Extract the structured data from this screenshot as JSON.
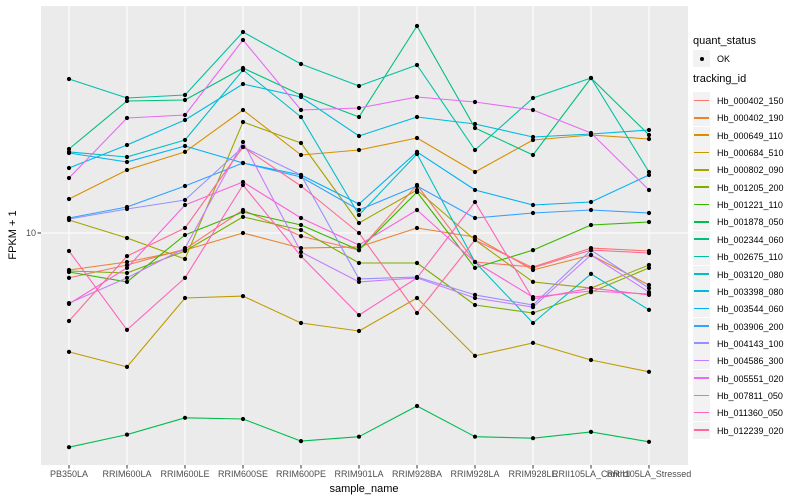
{
  "axes": {
    "y": {
      "title": "FPKM + 1",
      "tick_label": "10"
    },
    "x": {
      "title": "sample_name"
    }
  },
  "legend": {
    "quant": {
      "title": "quant_status",
      "items": [
        {
          "label": "OK",
          "symbol": "black-point"
        }
      ]
    },
    "tracking": {
      "title": "tracking_id"
    }
  },
  "chart_data": {
    "type": "line",
    "title": "",
    "xlabel": "sample_name",
    "ylabel": "FPKM + 1",
    "y_scale": "log10",
    "y_tick_values": [
      10
    ],
    "ylim": [
      1.17,
      81.6
    ],
    "grid": "major-white-on-grey",
    "legend_position": "right",
    "panel_background": "#EBEBEB",
    "gridline_color": "#FFFFFF",
    "point_color": "#000000",
    "categories": [
      "PB350LA",
      "RRIM600LA",
      "RRIM600LE",
      "RRIM600SE",
      "RRIM600PE",
      "RRIM901LA",
      "RRIM928BA",
      "RRIM928LA",
      "RRIM928LE",
      "RRII105LA_Control",
      "RRII105LA_Stressed"
    ],
    "series": [
      {
        "name": "Hb_000402_150",
        "color": "#F8766D",
        "values": [
          6.6,
          7.44,
          8.62,
          12.37,
          9.72,
          8.54,
          15.59,
          7.65,
          7.3,
          8.7,
          8.47
        ]
      },
      {
        "name": "Hb_000402_190",
        "color": "#EA8331",
        "values": [
          7.1,
          7.65,
          8.54,
          10.0,
          8.7,
          8.79,
          10.47,
          9.64,
          7.1,
          8.16,
          6.18
        ]
      },
      {
        "name": "Hb_000649_110",
        "color": "#D89000",
        "values": [
          13.69,
          17.91,
          21.16,
          31.19,
          20.57,
          21.54,
          24.07,
          17.58,
          23.63,
          24.75,
          23.85
        ]
      },
      {
        "name": "Hb_000684_510",
        "color": "#C09B00",
        "values": [
          3.33,
          2.9,
          5.48,
          5.58,
          4.35,
          4.04,
          5.48,
          3.21,
          3.62,
          3.09,
          2.77
        ]
      },
      {
        "name": "Hb_000802_090",
        "color": "#A3A500",
        "values": [
          11.28,
          9.55,
          7.86,
          27.92,
          22.99,
          10.97,
          14.88,
          9.37,
          6.36,
          6.01,
          7.44
        ]
      },
      {
        "name": "Hb_001205_200",
        "color": "#7CAE00",
        "values": [
          7.04,
          6.91,
          8.47,
          11.6,
          10.28,
          7.58,
          7.58,
          5.14,
          4.77,
          5.79,
          7.24
        ]
      },
      {
        "name": "Hb_001221_110",
        "color": "#39B600",
        "values": [
          6.97,
          6.36,
          9.82,
          12.14,
          10.77,
          8.54,
          14.61,
          7.24,
          8.54,
          10.77,
          11.07
        ]
      },
      {
        "name": "Hb_001878_050",
        "color": "#00BB4E",
        "values": [
          1.38,
          1.55,
          1.81,
          1.79,
          1.46,
          1.52,
          2.02,
          1.52,
          1.5,
          1.59,
          1.45
        ]
      },
      {
        "name": "Hb_002344_060",
        "color": "#00BF7D",
        "values": [
          21.74,
          33.88,
          34.2,
          46.0,
          35.83,
          29.24,
          67.81,
          26.4,
          20.57,
          41.93,
          24.75
        ]
      },
      {
        "name": "Hb_002675_110",
        "color": "#00C1A3",
        "values": [
          41.54,
          34.85,
          35.83,
          64.15,
          47.72,
          38.94,
          47.28,
          21.54,
          34.85,
          41.93,
          17.58
        ]
      },
      {
        "name": "Hb_003120_080",
        "color": "#00BFC4",
        "values": [
          21.16,
          20.2,
          23.63,
          45.15,
          29.24,
          11.81,
          20.76,
          7.65,
          4.35,
          6.85,
          4.91
        ]
      },
      {
        "name": "Hb_003398_080",
        "color": "#00BAE0",
        "values": [
          18.24,
          22.57,
          28.43,
          39.66,
          35.17,
          24.52,
          29.24,
          27.4,
          24.29,
          24.98,
          25.93
        ]
      },
      {
        "name": "Hb_003544_060",
        "color": "#00B0F6",
        "values": [
          20.96,
          19.28,
          22.36,
          19.1,
          17.1,
          13.08,
          21.16,
          14.88,
          12.95,
          13.32,
          17.1
        ]
      },
      {
        "name": "Hb_003906_200",
        "color": "#35A2FF",
        "values": [
          11.49,
          12.72,
          15.45,
          19.1,
          16.79,
          12.37,
          15.45,
          11.49,
          12.03,
          12.37,
          12.03
        ]
      },
      {
        "name": "Hb_004143_100",
        "color": "#9590FF",
        "values": [
          11.38,
          12.49,
          13.57,
          22.15,
          17.1,
          6.54,
          6.66,
          5.64,
          5.14,
          8.54,
          6.01
        ]
      },
      {
        "name": "Hb_004586_300",
        "color": "#C77CFF",
        "values": [
          5.23,
          6.6,
          8.7,
          23.2,
          8.39,
          6.36,
          6.6,
          5.48,
          5.04,
          8.16,
          5.79
        ]
      },
      {
        "name": "Hb_005551_020",
        "color": "#E76BF3",
        "values": [
          16.63,
          28.96,
          29.78,
          59.57,
          31.19,
          31.77,
          35.17,
          33.59,
          31.19,
          25.21,
          14.88
        ]
      },
      {
        "name": "Hb_007811_050",
        "color": "#FA62DB",
        "values": [
          5.19,
          7.24,
          12.95,
          16.02,
          11.49,
          8.95,
          12.37,
          7.65,
          5.53,
          5.85,
          5.69
        ]
      },
      {
        "name": "Hb_011360_050",
        "color": "#FF62BC",
        "values": [
          8.47,
          4.08,
          6.6,
          15.59,
          8.08,
          4.68,
          6.6,
          13.32,
          5.43,
          6.01,
          5.64
        ]
      },
      {
        "name": "Hb_012239_020",
        "color": "#FF6A98",
        "values": [
          4.43,
          8.08,
          10.47,
          22.15,
          15.45,
          10.0,
          4.77,
          9.37,
          7.24,
          8.54,
          8.31
        ]
      }
    ]
  }
}
